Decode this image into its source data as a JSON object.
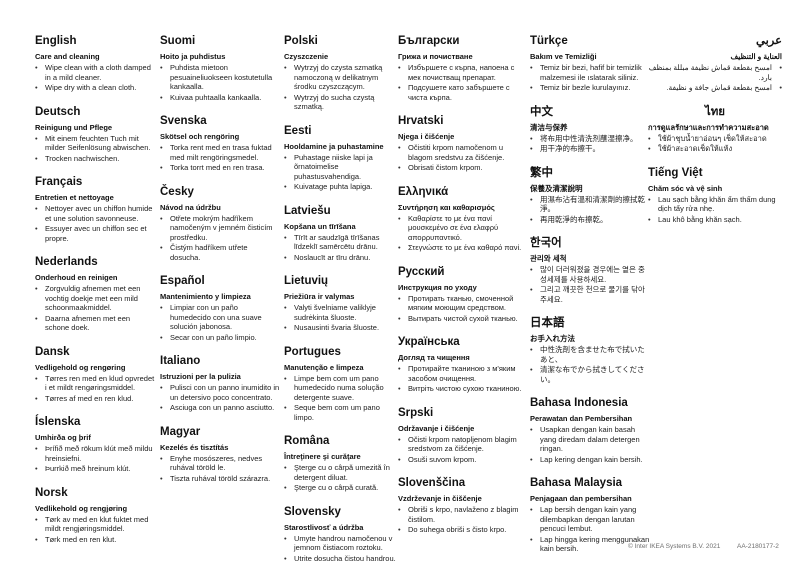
{
  "bullet_char": "•",
  "footer": {
    "copyright": "© Inter IKEA Systems B.V. 2021",
    "doc_number": "AA-2180177-2"
  },
  "columns": [
    {
      "sections": [
        {
          "lang": "English",
          "title": "Care and cleaning",
          "bullets": [
            "Wipe clean with a cloth damped in a mild cleaner.",
            "Wipe dry with a clean cloth."
          ]
        },
        {
          "lang": "Deutsch",
          "title": "Reinigung und Pflege",
          "bullets": [
            "Mit einem feuchten Tuch mit milder Seifenlösung abwischen.",
            "Trocken nachwischen."
          ]
        },
        {
          "lang": "Français",
          "title": "Entretien et nettoyage",
          "bullets": [
            "Nettoyer avec un chiffon humide et une solution savonneuse.",
            "Essuyer avec un chiffon sec et propre."
          ]
        },
        {
          "lang": "Nederlands",
          "title": "Onderhoud en reinigen",
          "bullets": [
            "Zorgvuldig afnemen met een vochtig doekje met een mild schoonmaakmiddel.",
            "Daarna afnemen met een schone doek."
          ]
        },
        {
          "lang": "Dansk",
          "title": "Vedligehold og rengøring",
          "bullets": [
            "Tørres ren med en klud opvredet i et mildt rengøringsmiddel.",
            "Tørres af med en ren klud."
          ]
        },
        {
          "lang": "Íslenska",
          "title": "Umhirða og þrif",
          "bullets": [
            "Þrífið með rökum klút með mildu hreinsiefni.",
            "Þurrkið með hreinum klút."
          ]
        },
        {
          "lang": "Norsk",
          "title": "Vedlikehold og rengjøring",
          "bullets": [
            "Tørk av med en klut fuktet med mildt rengjøringsmiddel.",
            "Tørk med en ren klut."
          ]
        }
      ]
    },
    {
      "sections": [
        {
          "lang": "Suomi",
          "title": "Hoito ja puhdistus",
          "bullets": [
            "Puhdista mietoon pesuaineliuokseen kostutetulla kankaalla.",
            "Kuivaa puhtaalla kankaalla."
          ]
        },
        {
          "lang": "Svenska",
          "title": "Skötsel och rengöring",
          "bullets": [
            "Torka rent med en trasa fuktad med milt rengöringsmedel.",
            "Torka torrt med en ren trasa."
          ]
        },
        {
          "lang": "Česky",
          "title": "Návod na údržbu",
          "bullets": [
            "Otřete mokrým hadříkem namočeným v jemném čisticím prostředku.",
            "Čistým hadříkem utřete dosucha."
          ]
        },
        {
          "lang": "Español",
          "title": "Mantenimiento y limpieza",
          "bullets": [
            "Limpiar con un paño humedecido con una suave solución jabonosa.",
            "Secar con un paño limpio."
          ]
        },
        {
          "lang": "Italiano",
          "title": "Istruzioni per la pulizia",
          "bullets": [
            "Pulisci con un panno inumidito in un detersivo poco concentrato.",
            "Asciuga con un panno asciutto."
          ]
        },
        {
          "lang": "Magyar",
          "title": "Kezelés és tisztítás",
          "bullets": [
            "Enyhe mosószeres, nedves ruhával töröld le.",
            "Tiszta ruhával töröld szárazra."
          ]
        }
      ]
    },
    {
      "sections": [
        {
          "lang": "Polski",
          "title": "Czyszczenie",
          "bullets": [
            "Wytrzyj do czysta szmatką namoczoną w delikatnym środku czyszczącym.",
            "Wytrzyj do sucha czystą szmatką."
          ]
        },
        {
          "lang": "Eesti",
          "title": "Hooldamine ja puhastamine",
          "bullets": [
            "Puhastage niiske lapi ja õrnatoimelise puhastusvahendiga.",
            "Kuivatage puhta lapiga."
          ]
        },
        {
          "lang": "Latviešu",
          "title": "Kopšana un tīrīšana",
          "bullets": [
            "Tīrīt ar saudzīgā tīrīšanas līdzeklī samērcētu drānu.",
            "Noslaucīt ar tīru drānu."
          ]
        },
        {
          "lang": "Lietuvių",
          "title": "Priežiūra ir valymas",
          "bullets": [
            "Valyti švelniame valiklyje sudrėkinta šluoste.",
            "Nusausinti švaria šluoste."
          ]
        },
        {
          "lang": "Portugues",
          "title": "Manutenção e limpeza",
          "bullets": [
            "Limpe bem com um pano humedecido numa solução detergente suave.",
            "Seque bem com um pano limpo."
          ]
        },
        {
          "lang": "Româna",
          "title": "Întreţinere şi curăţare",
          "bullets": [
            "Şterge cu o cârpă umezită în detergent diluat.",
            "Şterge cu o cârpă curată."
          ]
        },
        {
          "lang": "Slovensky",
          "title": "Starostlivosť a údržba",
          "bullets": [
            "Umyte handrou namočenou v jemnom čistiacom roztoku.",
            "Utrite dosucha čistou handrou."
          ]
        }
      ]
    },
    {
      "sections": [
        {
          "lang": "Български",
          "title": "Грижа и почистване",
          "bullets": [
            "Избършете с кърпа, напоена с мек почистващ препарат.",
            "Подсушете като забършете с чиста кърпа."
          ]
        },
        {
          "lang": "Hrvatski",
          "title": "Njega i čišćenje",
          "bullets": [
            "Očistiti krpom namočenom u blagom sredstvu za čišćenje.",
            "Obrisati čistom krpom."
          ]
        },
        {
          "lang": "Ελληνικά",
          "title": "Συντήρηση και καθαρισμός",
          "bullets": [
            "Καθαρίστε το με ένα πανί μουσκεμένο σε ένα ελαφρύ απορρυπαντικό.",
            "Στεγνώστε το με ένα καθαρό πανί."
          ]
        },
        {
          "lang": "Русский",
          "title": "Инструкция по уходу",
          "bullets": [
            "Протирать тканью, смоченной мягким моющим средством.",
            "Вытирать чистой сухой тканью."
          ]
        },
        {
          "lang": "Українська",
          "title": "Догляд та чищення",
          "bullets": [
            "Протирайте тканиною з м'яким засобом очищення.",
            "Витріть чистою сухою тканиною."
          ]
        },
        {
          "lang": "Srpski",
          "title": "Održavanje i čišćenje",
          "bullets": [
            "Očisti krpom natopljenom blagim sredstvom za čišćenje.",
            "Osuši suvom krpom."
          ]
        },
        {
          "lang": "Slovenščina",
          "title": "Vzdrževanje in čiščenje",
          "bullets": [
            "Obriši s krpo, navlaženo z blagim čistilom.",
            "Do suhega obriši s čisto krpo."
          ]
        }
      ]
    },
    {
      "sections": [
        {
          "lang": "Türkçe",
          "title": "Bakım ve Temizliği",
          "bullets": [
            "Temiz bir bezi, hafif bir temizlik malzemesi ile ıslatarak siliniz.",
            "Temiz bir bezle kurulayınız."
          ]
        },
        {
          "lang": "中文",
          "title": "清洁与保养",
          "bullets": [
            "将布用中性清洗剂蘸湿擦净。",
            "用干净的布擦干。"
          ]
        },
        {
          "lang": "繁中",
          "title": "保養及清潔說明",
          "bullets": [
            "用濕布沾有溫和清潔劑的擦拭乾淨。",
            "再用乾淨的布擦乾。"
          ]
        },
        {
          "lang": "한국어",
          "title": "관리와 세척",
          "bullets": [
            "많이 더러워졌을 경우에는 옅은 중성세제를 사용하세요.",
            "그리고 깨끗한 천으로 물기를 닦아주세요."
          ]
        },
        {
          "lang": "日本語",
          "title": "お手入れ方法",
          "bullets": [
            "中性洗剤を含ませた布で拭いたあと、",
            "清潔な布でから拭きしてください。"
          ]
        },
        {
          "lang": "Bahasa Indonesia",
          "title": "Perawatan dan Pembersihan",
          "bullets": [
            "Usapkan dengan kain basah yang diredam dalam detergen ringan.",
            "Lap kering dengan kain bersih."
          ]
        },
        {
          "lang": "Bahasa Malaysia",
          "title": "Penjagaan dan pembersihan",
          "bullets": [
            "Lap bersih dengan kain yang dilembapkan dengan larutan pencuci lembut.",
            "Lap hingga kering menggunakan kain bersih."
          ]
        }
      ]
    },
    {
      "sections": [
        {
          "lang": "عربي",
          "title": "العناية و التنظيف",
          "dir": "rtl",
          "bullets": [
            "امسح بقطعة قماش نظيفة مبللة بمنظف بارد.",
            "امسح بقطعة قماش جافة و نظيفة."
          ]
        },
        {
          "lang": "ไทย",
          "title": "การดูแลรักษาและการทำความสะอาด",
          "heading_align": "center",
          "bullets": [
            "ใช้ผ้าชุบน้ำยาอ่อนๆ เช็ดให้สะอาด",
            "ใช้ผ้าสะอาดเช็ดให้แห้ง"
          ]
        },
        {
          "lang": "Tiếng Việt",
          "title": "Chăm sóc và vệ sinh",
          "bullets": [
            "Lau sạch bằng khăn ẩm thấm dung dịch tẩy rửa nhẹ.",
            "Lau khô bằng khăn sạch."
          ]
        }
      ]
    }
  ]
}
